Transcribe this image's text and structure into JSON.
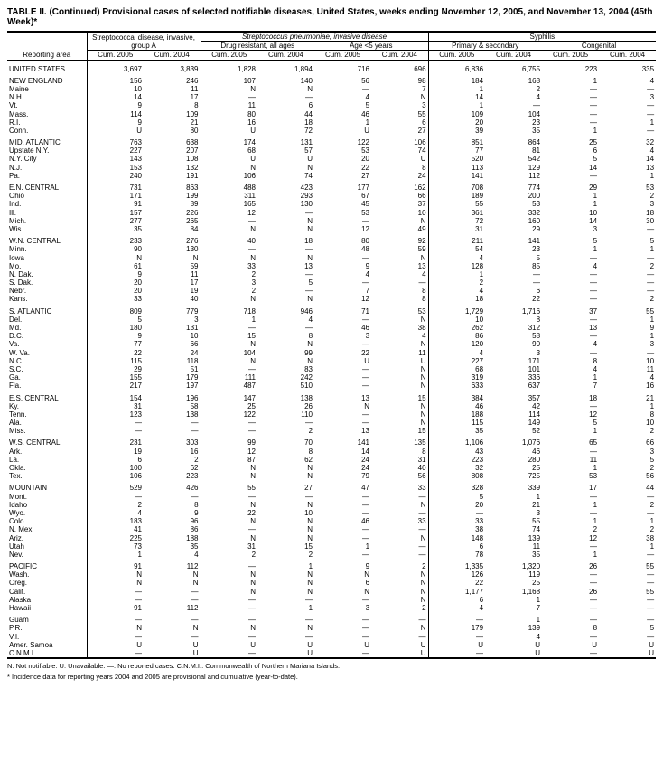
{
  "title": "TABLE II. (Continued) Provisional cases of selected notifiable diseases, United States, weeks ending November 12, 2005, and November 13, 2004 (45th Week)*",
  "footnote1": "N: Not notifiable.        U: Unavailable.        —: No reported cases.        C.N.M.I.: Commonwealth of Northern Mariana Islands.",
  "footnote2": "* Incidence data for reporting years 2004 and 2005 are provisional and cumulative (year-to-date).",
  "colhead": {
    "group1": "Streptococcal disease, invasive, group A",
    "group2": "Streptococcus pneumoniae, invasive disease",
    "group2a": "Drug resistant, all ages",
    "group2b": "Age <5 years",
    "group3": "Syphilis",
    "group3a": "Primary & secondary",
    "group3b": "Congenital",
    "cum2005": "Cum. 2005",
    "cum2004": "Cum. 2004",
    "reporting": "Reporting area"
  },
  "rows": [
    {
      "g": 1,
      "a": "UNITED STATES",
      "c": [
        "3,697",
        "3,839",
        "1,828",
        "1,894",
        "716",
        "696",
        "6,836",
        "6,755",
        "223",
        "335"
      ]
    },
    {
      "g": 1,
      "a": "NEW ENGLAND",
      "c": [
        "156",
        "246",
        "107",
        "140",
        "56",
        "98",
        "184",
        "168",
        "1",
        "4"
      ]
    },
    {
      "a": "Maine",
      "c": [
        "10",
        "11",
        "N",
        "N",
        "—",
        "7",
        "1",
        "2",
        "—",
        "—"
      ]
    },
    {
      "a": "N.H.",
      "c": [
        "14",
        "17",
        "—",
        "—",
        "4",
        "N",
        "14",
        "4",
        "—",
        "3"
      ]
    },
    {
      "a": "Vt.",
      "c": [
        "9",
        "8",
        "11",
        "6",
        "5",
        "3",
        "1",
        "—",
        "—",
        "—"
      ]
    },
    {
      "a": "Mass.",
      "c": [
        "114",
        "109",
        "80",
        "44",
        "46",
        "55",
        "109",
        "104",
        "—",
        "—"
      ]
    },
    {
      "a": "R.I.",
      "c": [
        "9",
        "21",
        "16",
        "18",
        "1",
        "6",
        "20",
        "23",
        "—",
        "1"
      ]
    },
    {
      "a": "Conn.",
      "c": [
        "U",
        "80",
        "U",
        "72",
        "U",
        "27",
        "39",
        "35",
        "1",
        "—"
      ]
    },
    {
      "g": 1,
      "a": "MID. ATLANTIC",
      "c": [
        "763",
        "638",
        "174",
        "131",
        "122",
        "106",
        "851",
        "864",
        "25",
        "32"
      ]
    },
    {
      "a": "Upstate N.Y.",
      "c": [
        "227",
        "207",
        "68",
        "57",
        "53",
        "74",
        "77",
        "81",
        "6",
        "4"
      ]
    },
    {
      "a": "N.Y. City",
      "c": [
        "143",
        "108",
        "U",
        "U",
        "20",
        "U",
        "520",
        "542",
        "5",
        "14"
      ]
    },
    {
      "a": "N.J.",
      "c": [
        "153",
        "132",
        "N",
        "N",
        "22",
        "8",
        "113",
        "129",
        "14",
        "13"
      ]
    },
    {
      "a": "Pa.",
      "c": [
        "240",
        "191",
        "106",
        "74",
        "27",
        "24",
        "141",
        "112",
        "—",
        "1"
      ]
    },
    {
      "g": 1,
      "a": "E.N. CENTRAL",
      "c": [
        "731",
        "863",
        "488",
        "423",
        "177",
        "162",
        "708",
        "774",
        "29",
        "53"
      ]
    },
    {
      "a": "Ohio",
      "c": [
        "171",
        "199",
        "311",
        "293",
        "67",
        "66",
        "189",
        "200",
        "1",
        "2"
      ]
    },
    {
      "a": "Ind.",
      "c": [
        "91",
        "89",
        "165",
        "130",
        "45",
        "37",
        "55",
        "53",
        "1",
        "3"
      ]
    },
    {
      "a": "Ill.",
      "c": [
        "157",
        "226",
        "12",
        "—",
        "53",
        "10",
        "361",
        "332",
        "10",
        "18"
      ]
    },
    {
      "a": "Mich.",
      "c": [
        "277",
        "265",
        "—",
        "N",
        "—",
        "N",
        "72",
        "160",
        "14",
        "30"
      ]
    },
    {
      "a": "Wis.",
      "c": [
        "35",
        "84",
        "N",
        "N",
        "12",
        "49",
        "31",
        "29",
        "3",
        "—"
      ]
    },
    {
      "g": 1,
      "a": "W.N. CENTRAL",
      "c": [
        "233",
        "276",
        "40",
        "18",
        "80",
        "92",
        "211",
        "141",
        "5",
        "5"
      ]
    },
    {
      "a": "Minn.",
      "c": [
        "90",
        "130",
        "—",
        "—",
        "48",
        "59",
        "54",
        "23",
        "1",
        "1"
      ]
    },
    {
      "a": "Iowa",
      "c": [
        "N",
        "N",
        "N",
        "N",
        "—",
        "N",
        "4",
        "5",
        "—",
        "—"
      ]
    },
    {
      "a": "Mo.",
      "c": [
        "61",
        "59",
        "33",
        "13",
        "9",
        "13",
        "128",
        "85",
        "4",
        "2"
      ]
    },
    {
      "a": "N. Dak.",
      "c": [
        "9",
        "11",
        "2",
        "—",
        "4",
        "4",
        "1",
        "—",
        "—",
        "—"
      ]
    },
    {
      "a": "S. Dak.",
      "c": [
        "20",
        "17",
        "3",
        "5",
        "—",
        "—",
        "2",
        "—",
        "—",
        "—"
      ]
    },
    {
      "a": "Nebr.",
      "c": [
        "20",
        "19",
        "2",
        "—",
        "7",
        "8",
        "4",
        "6",
        "—",
        "—"
      ]
    },
    {
      "a": "Kans.",
      "c": [
        "33",
        "40",
        "N",
        "N",
        "12",
        "8",
        "18",
        "22",
        "—",
        "2"
      ]
    },
    {
      "g": 1,
      "a": "S. ATLANTIC",
      "c": [
        "809",
        "779",
        "718",
        "946",
        "71",
        "53",
        "1,729",
        "1,716",
        "37",
        "55"
      ]
    },
    {
      "a": "Del.",
      "c": [
        "5",
        "3",
        "1",
        "4",
        "—",
        "N",
        "10",
        "8",
        "—",
        "1"
      ]
    },
    {
      "a": "Md.",
      "c": [
        "180",
        "131",
        "—",
        "—",
        "46",
        "38",
        "262",
        "312",
        "13",
        "9"
      ]
    },
    {
      "a": "D.C.",
      "c": [
        "9",
        "10",
        "15",
        "8",
        "3",
        "4",
        "86",
        "58",
        "—",
        "1"
      ]
    },
    {
      "a": "Va.",
      "c": [
        "77",
        "66",
        "N",
        "N",
        "—",
        "N",
        "120",
        "90",
        "4",
        "3"
      ]
    },
    {
      "a": "W. Va.",
      "c": [
        "22",
        "24",
        "104",
        "99",
        "22",
        "11",
        "4",
        "3",
        "—",
        "—"
      ]
    },
    {
      "a": "N.C.",
      "c": [
        "115",
        "118",
        "N",
        "N",
        "U",
        "U",
        "227",
        "171",
        "8",
        "10"
      ]
    },
    {
      "a": "S.C.",
      "c": [
        "29",
        "51",
        "—",
        "83",
        "—",
        "N",
        "68",
        "101",
        "4",
        "11"
      ]
    },
    {
      "a": "Ga.",
      "c": [
        "155",
        "179",
        "111",
        "242",
        "—",
        "N",
        "319",
        "336",
        "1",
        "4"
      ]
    },
    {
      "a": "Fla.",
      "c": [
        "217",
        "197",
        "487",
        "510",
        "—",
        "N",
        "633",
        "637",
        "7",
        "16"
      ]
    },
    {
      "g": 1,
      "a": "E.S. CENTRAL",
      "c": [
        "154",
        "196",
        "147",
        "138",
        "13",
        "15",
        "384",
        "357",
        "18",
        "21"
      ]
    },
    {
      "a": "Ky.",
      "c": [
        "31",
        "58",
        "25",
        "26",
        "N",
        "N",
        "46",
        "42",
        "—",
        "1"
      ]
    },
    {
      "a": "Tenn.",
      "c": [
        "123",
        "138",
        "122",
        "110",
        "—",
        "N",
        "188",
        "114",
        "12",
        "8"
      ]
    },
    {
      "a": "Ala.",
      "c": [
        "—",
        "—",
        "—",
        "—",
        "—",
        "N",
        "115",
        "149",
        "5",
        "10"
      ]
    },
    {
      "a": "Miss.",
      "c": [
        "—",
        "—",
        "—",
        "2",
        "13",
        "15",
        "35",
        "52",
        "1",
        "2"
      ]
    },
    {
      "g": 1,
      "a": "W.S. CENTRAL",
      "c": [
        "231",
        "303",
        "99",
        "70",
        "141",
        "135",
        "1,106",
        "1,076",
        "65",
        "66"
      ]
    },
    {
      "a": "Ark.",
      "c": [
        "19",
        "16",
        "12",
        "8",
        "14",
        "8",
        "43",
        "46",
        "—",
        "3"
      ]
    },
    {
      "a": "La.",
      "c": [
        "6",
        "2",
        "87",
        "62",
        "24",
        "31",
        "223",
        "280",
        "11",
        "5"
      ]
    },
    {
      "a": "Okla.",
      "c": [
        "100",
        "62",
        "N",
        "N",
        "24",
        "40",
        "32",
        "25",
        "1",
        "2"
      ]
    },
    {
      "a": "Tex.",
      "c": [
        "106",
        "223",
        "N",
        "N",
        "79",
        "56",
        "808",
        "725",
        "53",
        "56"
      ]
    },
    {
      "g": 1,
      "a": "MOUNTAIN",
      "c": [
        "529",
        "426",
        "55",
        "27",
        "47",
        "33",
        "328",
        "339",
        "17",
        "44"
      ]
    },
    {
      "a": "Mont.",
      "c": [
        "—",
        "—",
        "—",
        "—",
        "—",
        "—",
        "5",
        "1",
        "—",
        "—"
      ]
    },
    {
      "a": "Idaho",
      "c": [
        "2",
        "8",
        "N",
        "N",
        "—",
        "N",
        "20",
        "21",
        "1",
        "2"
      ]
    },
    {
      "a": "Wyo.",
      "c": [
        "4",
        "9",
        "22",
        "10",
        "—",
        "—",
        "—",
        "3",
        "—",
        "—"
      ]
    },
    {
      "a": "Colo.",
      "c": [
        "183",
        "96",
        "N",
        "N",
        "46",
        "33",
        "33",
        "55",
        "1",
        "1"
      ]
    },
    {
      "a": "N. Mex.",
      "c": [
        "41",
        "86",
        "—",
        "N",
        "—",
        "—",
        "38",
        "74",
        "2",
        "2"
      ]
    },
    {
      "a": "Ariz.",
      "c": [
        "225",
        "188",
        "N",
        "N",
        "—",
        "N",
        "148",
        "139",
        "12",
        "38"
      ]
    },
    {
      "a": "Utah",
      "c": [
        "73",
        "35",
        "31",
        "15",
        "1",
        "—",
        "6",
        "11",
        "—",
        "1"
      ]
    },
    {
      "a": "Nev.",
      "c": [
        "1",
        "4",
        "2",
        "2",
        "—",
        "—",
        "78",
        "35",
        "1",
        "—"
      ]
    },
    {
      "g": 1,
      "a": "PACIFIC",
      "c": [
        "91",
        "112",
        "—",
        "1",
        "9",
        "2",
        "1,335",
        "1,320",
        "26",
        "55"
      ]
    },
    {
      "a": "Wash.",
      "c": [
        "N",
        "N",
        "N",
        "N",
        "N",
        "N",
        "126",
        "119",
        "—",
        "—"
      ]
    },
    {
      "a": "Oreg.",
      "c": [
        "N",
        "N",
        "N",
        "N",
        "6",
        "N",
        "22",
        "25",
        "—",
        "—"
      ]
    },
    {
      "a": "Calif.",
      "c": [
        "—",
        "—",
        "N",
        "N",
        "N",
        "N",
        "1,177",
        "1,168",
        "26",
        "55"
      ]
    },
    {
      "a": "Alaska",
      "c": [
        "—",
        "—",
        "—",
        "—",
        "—",
        "N",
        "6",
        "1",
        "—",
        "—"
      ]
    },
    {
      "a": "Hawaii",
      "c": [
        "91",
        "112",
        "—",
        "1",
        "3",
        "2",
        "4",
        "7",
        "—",
        "—"
      ]
    },
    {
      "g": 1,
      "a": "Guam",
      "c": [
        "—",
        "—",
        "—",
        "—",
        "—",
        "—",
        "—",
        "1",
        "—",
        "—"
      ]
    },
    {
      "a": "P.R.",
      "c": [
        "N",
        "N",
        "N",
        "N",
        "—",
        "N",
        "179",
        "139",
        "8",
        "5"
      ]
    },
    {
      "a": "V.I.",
      "c": [
        "—",
        "—",
        "—",
        "—",
        "—",
        "—",
        "—",
        "4",
        "—",
        "—"
      ]
    },
    {
      "a": "Amer. Samoa",
      "c": [
        "U",
        "U",
        "U",
        "U",
        "U",
        "U",
        "U",
        "U",
        "U",
        "U"
      ]
    },
    {
      "a": "C.N.M.I.",
      "c": [
        "—",
        "U",
        "—",
        "U",
        "—",
        "U",
        "—",
        "U",
        "—",
        "U"
      ],
      "last": 1
    }
  ]
}
